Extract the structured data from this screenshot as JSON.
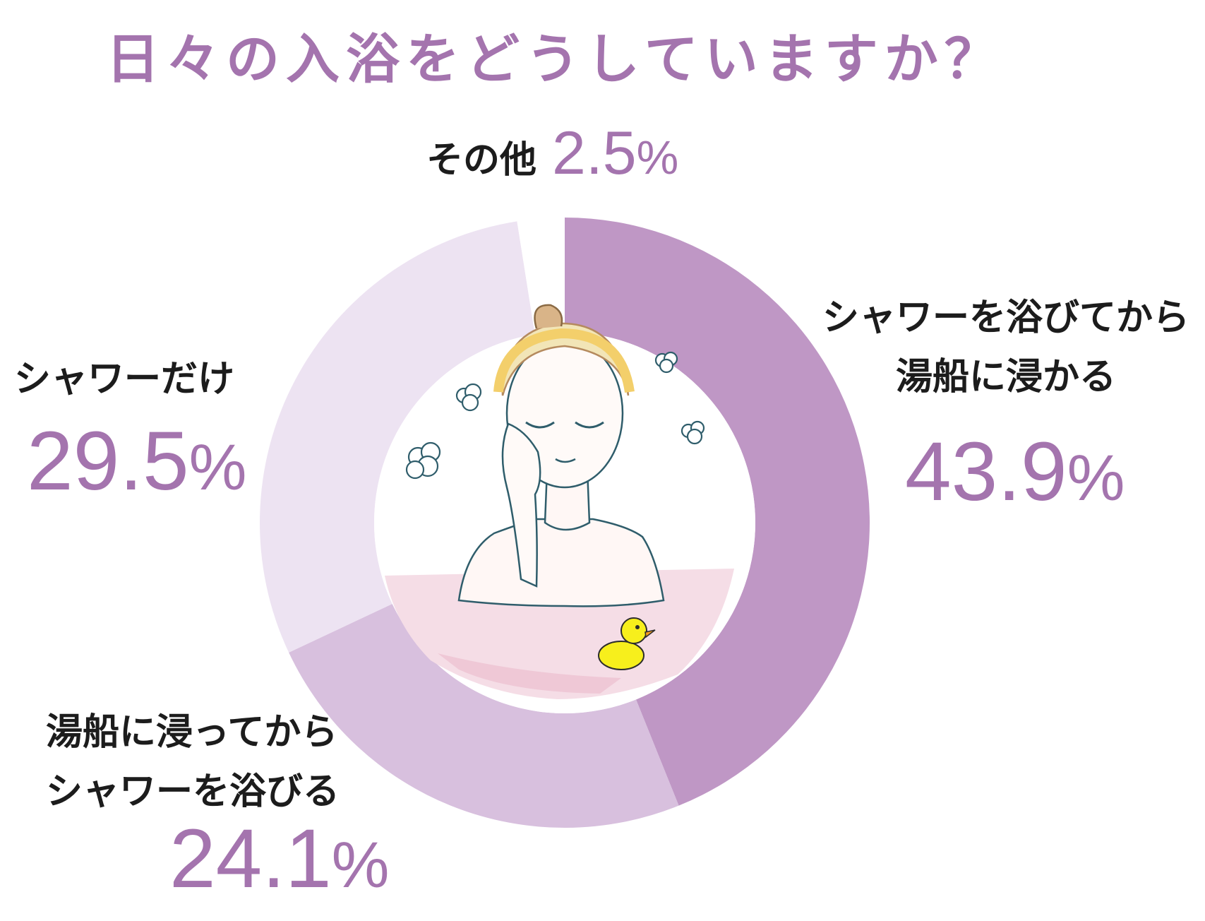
{
  "title": "日々の入浴をどうしていますか？",
  "colors": {
    "title": "#a474ae",
    "label": "#1c1c1c",
    "percent": "#a474ae"
  },
  "chart_data": {
    "type": "pie",
    "style": "donut",
    "title": "日々の入浴をどうしていますか？",
    "start": "12 o'clock, clockwise",
    "slices": [
      {
        "label": "シャワーを浴びてから湯船に浸かる",
        "value": 43.9,
        "display": "43.9%",
        "color": "#bf97c5"
      },
      {
        "label": "湯船に浸ってからシャワーを浴びる",
        "value": 24.1,
        "display": "24.1%",
        "color": "#d8c0de"
      },
      {
        "label": "シャワーだけ",
        "value": 29.5,
        "display": "29.5%",
        "color": "#ede3f2"
      },
      {
        "label": "その他",
        "value": 2.5,
        "display": "2.5%",
        "color": "#ffffff"
      }
    ]
  },
  "labels": {
    "other": {
      "text": "その他",
      "num": "2.5",
      "sym": "%"
    },
    "shower_then_bath": {
      "line1": "シャワーを浴びてから",
      "line2": "湯船に浸かる",
      "num": "43.9",
      "sym": "%"
    },
    "shower_only": {
      "line1": "シャワーだけ",
      "num": "29.5",
      "sym": "%"
    },
    "bath_then_shower": {
      "line1": "湯船に浸ってから",
      "line2": "シャワーを浴びる",
      "num": "24.1",
      "sym": "%"
    }
  },
  "center_image": {
    "description_icon": "woman-bathing-illustration",
    "duck_icon": "rubber-duck-icon"
  }
}
